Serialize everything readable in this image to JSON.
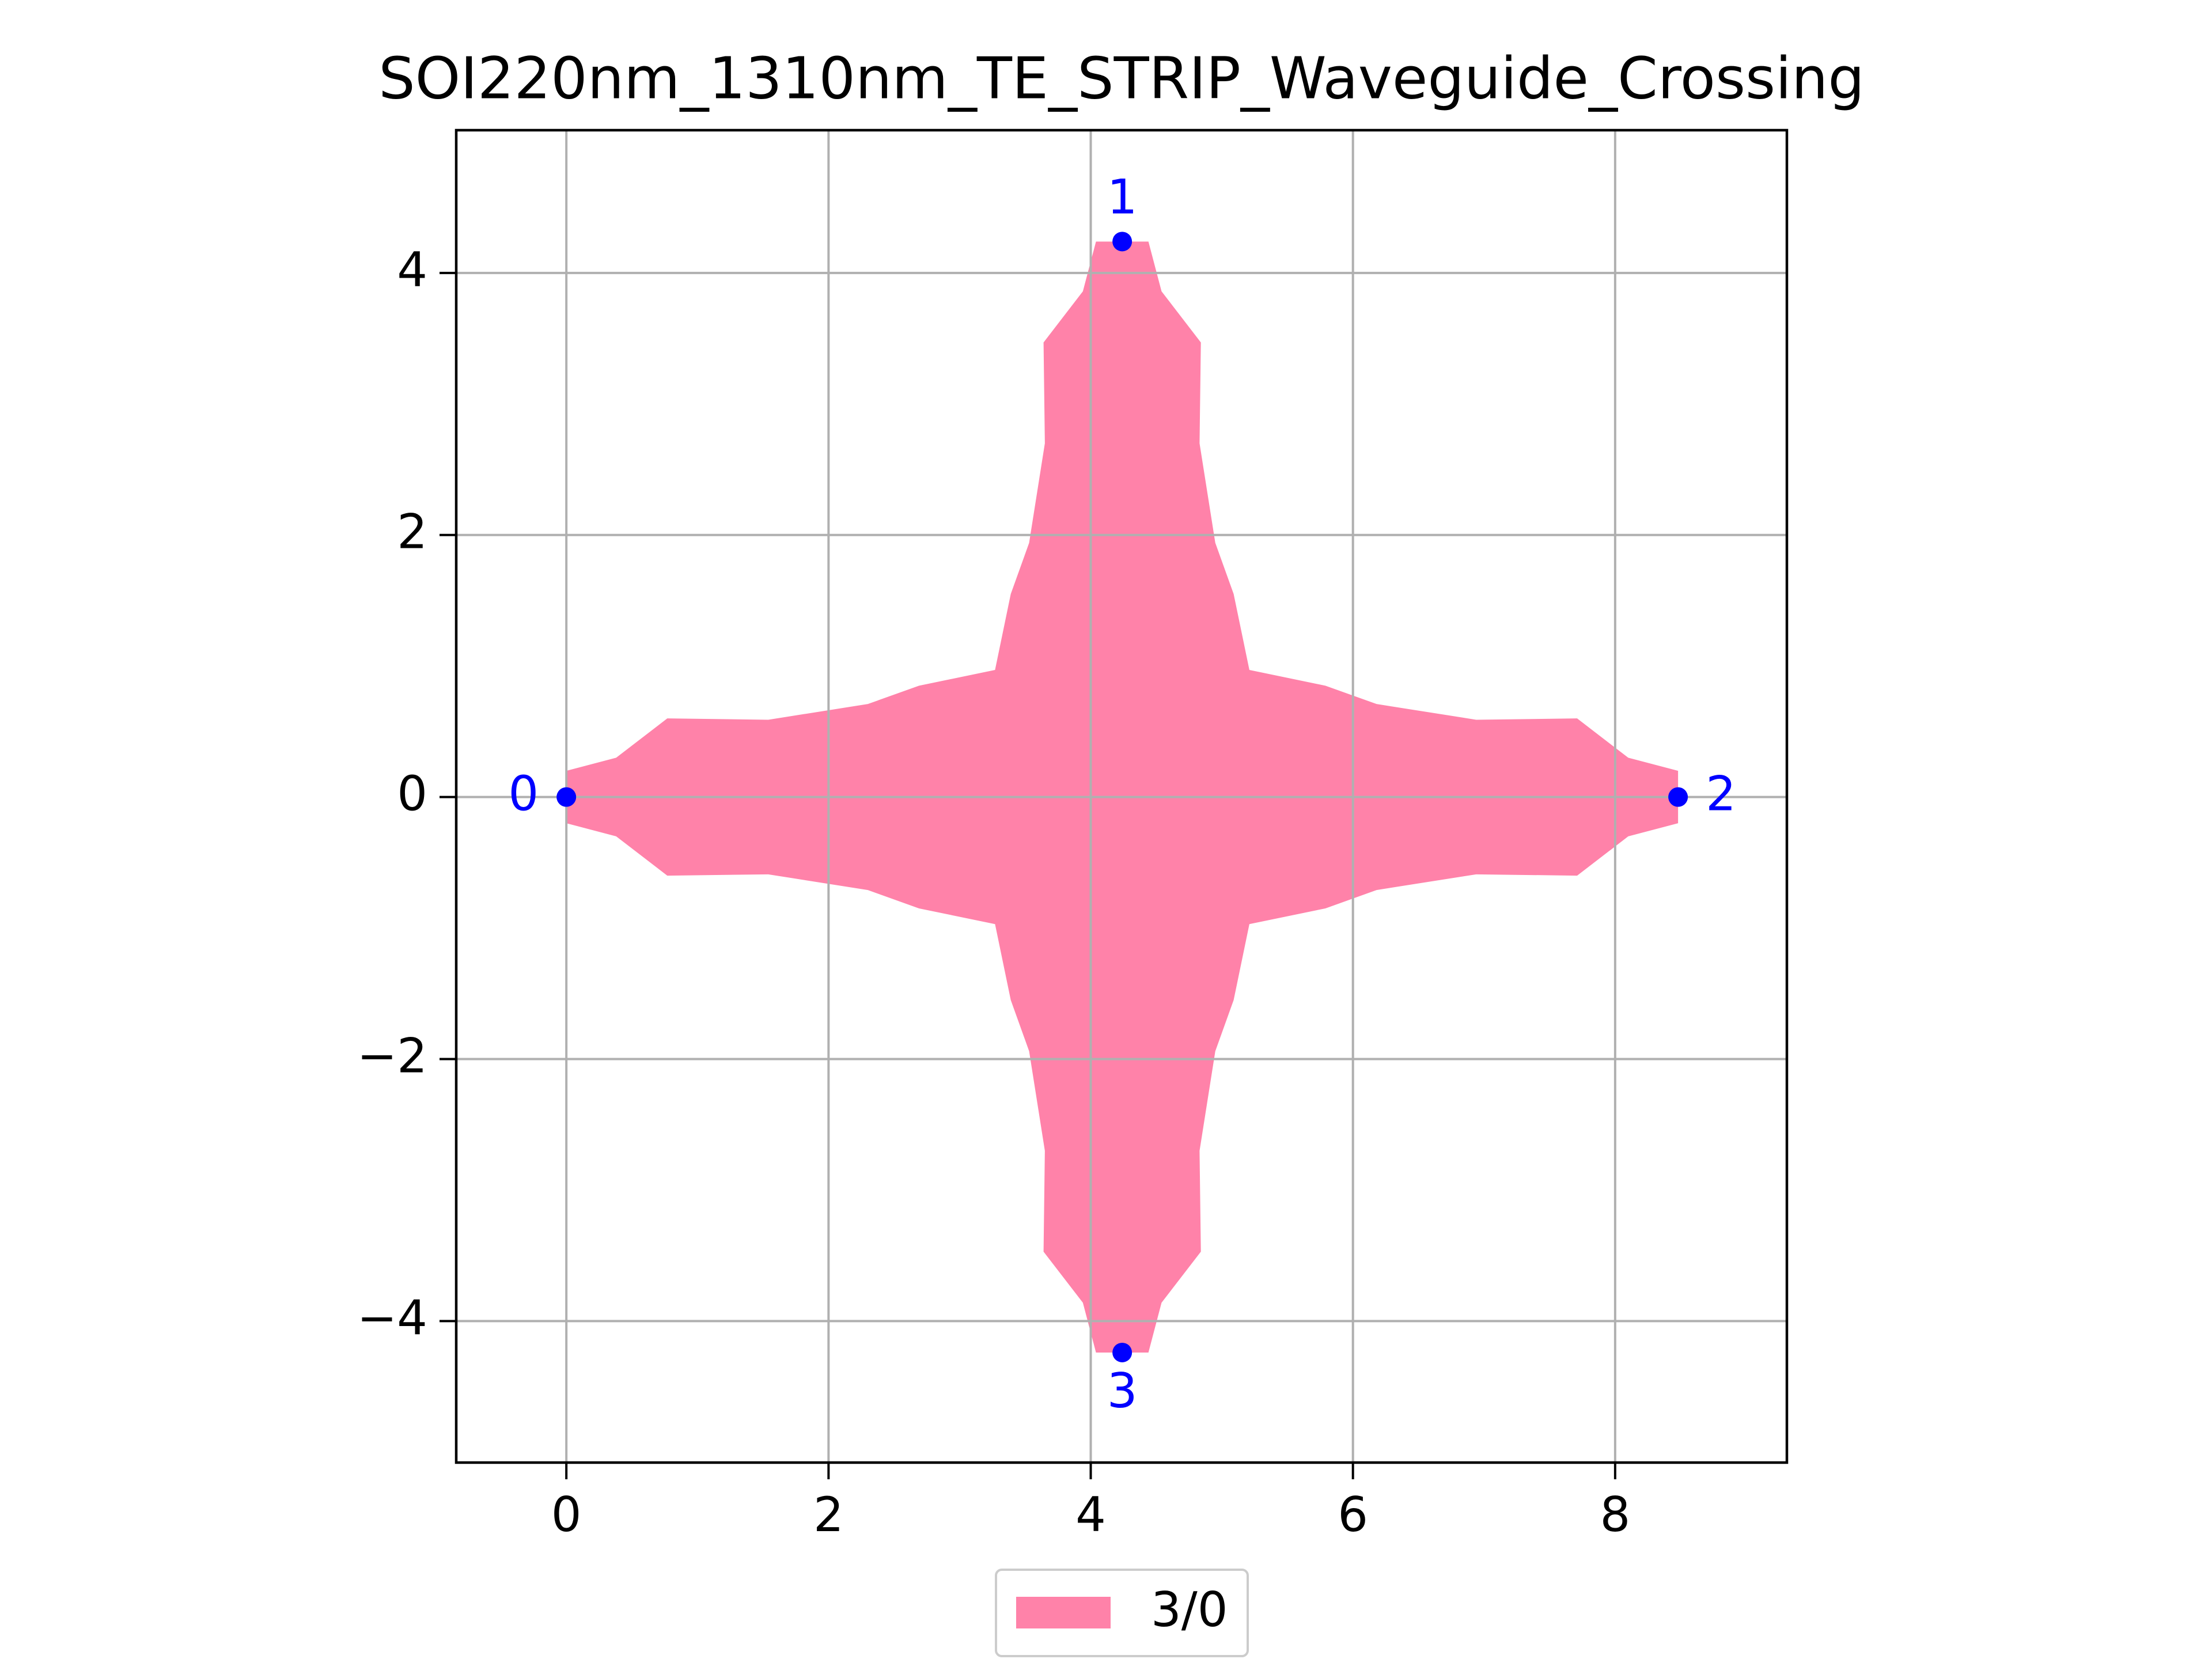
{
  "chart_data": {
    "type": "layout",
    "title": "SOI220nm_1310nm_TE_STRIP_Waveguide_Crossing",
    "xlim": [
      -0.84,
      9.31
    ],
    "ylim": [
      -5.08,
      5.09
    ],
    "xticks": [
      0,
      2,
      4,
      6,
      8
    ],
    "yticks": [
      {
        "value": -4,
        "label": "−4"
      },
      {
        "value": -2,
        "label": "−2"
      },
      0,
      2,
      4
    ],
    "grid": true,
    "polygon": {
      "name": "3/0",
      "color": "#ff82a9",
      "x": [
        0,
        0.38,
        0.77,
        1.54,
        2.3,
        2.69,
        3.27,
        3.39,
        3.53,
        3.65,
        3.64,
        3.94,
        4.04,
        4.44,
        4.54,
        4.84,
        4.83,
        4.95,
        5.09,
        5.21,
        5.79,
        6.18,
        6.94,
        7.71,
        8.1,
        8.48,
        8.48,
        8.1,
        7.71,
        6.94,
        6.18,
        5.79,
        5.21,
        5.09,
        4.95,
        4.83,
        4.84,
        4.54,
        4.44,
        4.04,
        3.94,
        3.64,
        3.65,
        3.53,
        3.39,
        3.27,
        2.69,
        2.3,
        1.54,
        0.77,
        0.38,
        0
      ],
      "y": [
        0.2,
        0.3,
        0.6,
        0.59,
        0.71,
        0.85,
        0.97,
        1.55,
        1.94,
        2.7,
        3.47,
        3.86,
        4.24,
        4.24,
        3.86,
        3.47,
        2.7,
        1.94,
        1.55,
        0.97,
        0.85,
        0.71,
        0.59,
        0.6,
        0.3,
        0.2,
        -0.2,
        -0.3,
        -0.6,
        -0.59,
        -0.71,
        -0.85,
        -0.97,
        -1.55,
        -1.94,
        -2.7,
        -3.47,
        -3.86,
        -4.24,
        -4.24,
        -3.86,
        -3.47,
        -2.7,
        -1.94,
        -1.55,
        -0.97,
        -0.85,
        -0.71,
        -0.59,
        -0.6,
        -0.3,
        -0.2
      ]
    },
    "ports": {
      "color": "#0000ff",
      "labels": [
        "0",
        "1",
        "2",
        "3"
      ],
      "x": [
        0,
        4.24,
        8.48,
        4.24
      ],
      "y": [
        0,
        4.24,
        0,
        -4.24
      ]
    }
  }
}
